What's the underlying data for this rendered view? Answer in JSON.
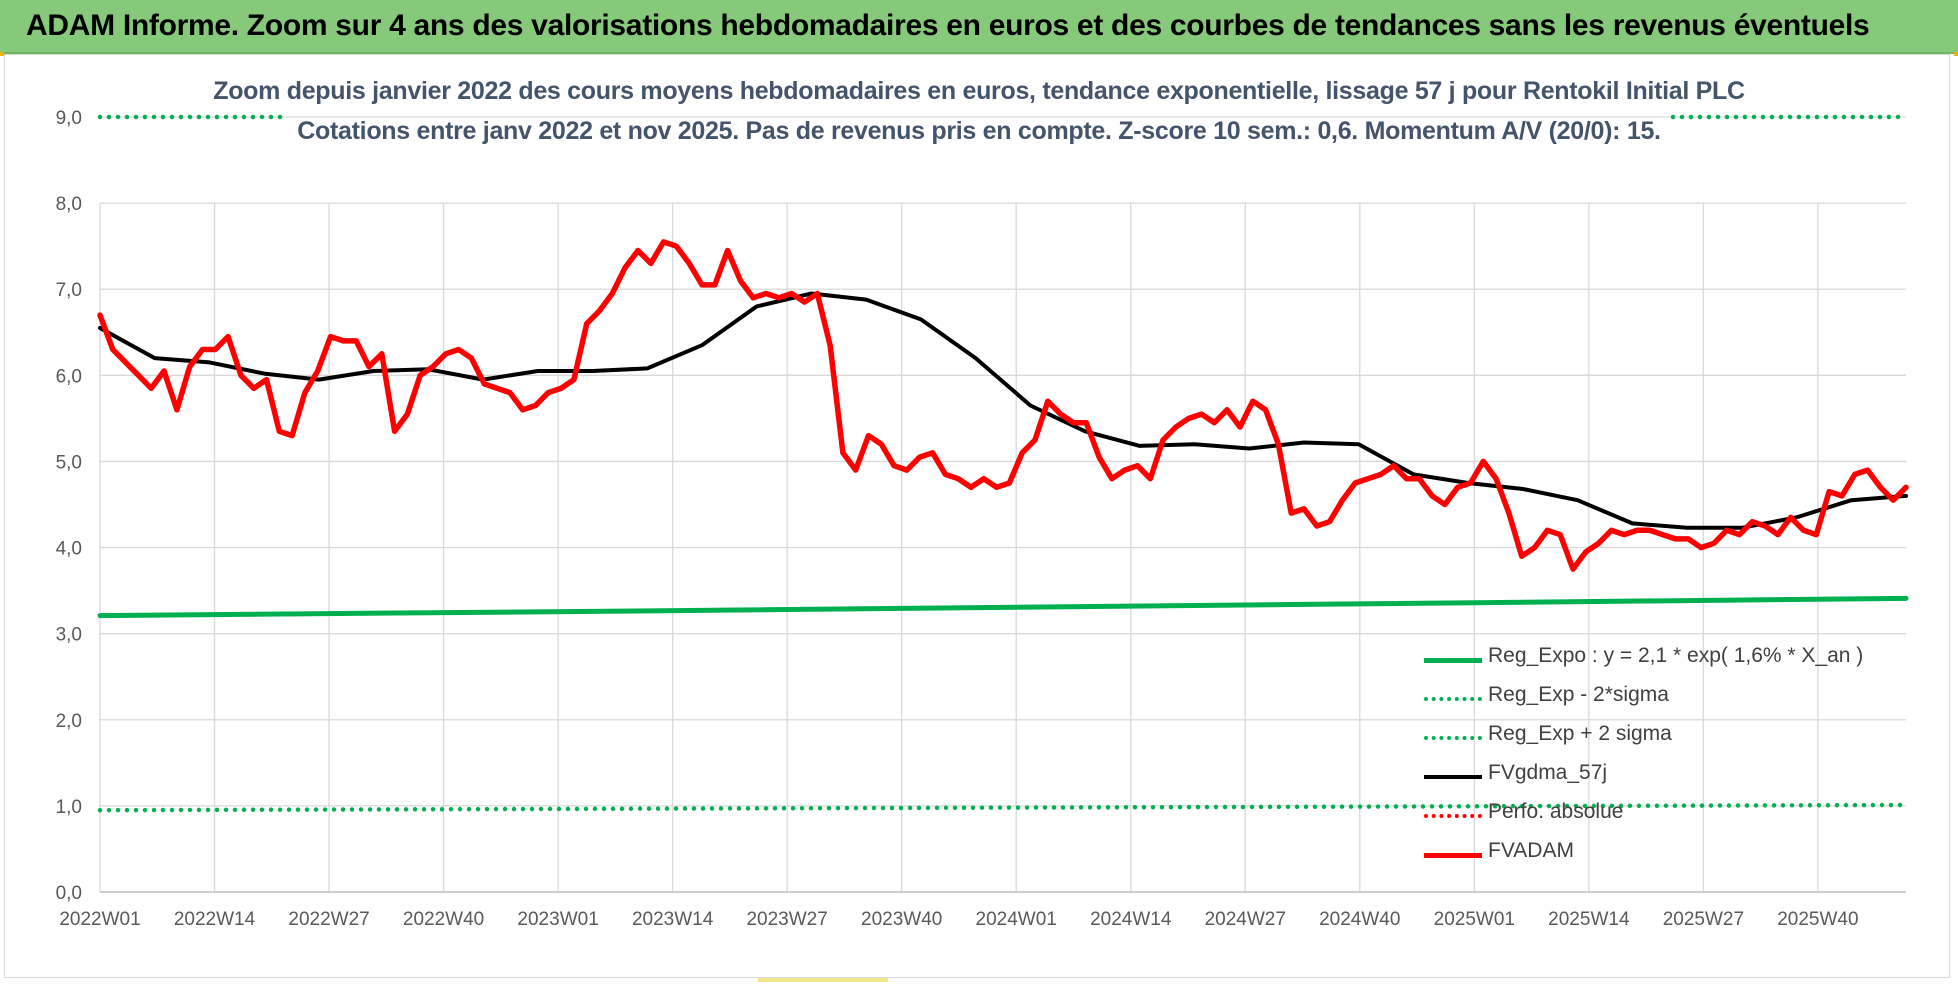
{
  "header": {
    "title": "ADAM Informe. Zoom sur 4 ans des valorisations hebdomadaires en euros et des courbes de tendances sans les revenus éventuels"
  },
  "chart_data": {
    "type": "line",
    "title": "Zoom depuis janvier 2022 des cours moyens hebdomadaires en euros, tendance exponentielle, lissage 57 j pour Rentokil Initial PLC",
    "subtitle": "Cotations entre janv 2022 et nov 2025. Pas de revenus pris en compte. Z-score 10 sem.: 0,6. Momentum A/V (20/0): 15.",
    "xlabel": "",
    "ylabel": "",
    "ylim": [
      0,
      9
    ],
    "yticks": [
      "0,0",
      "1,0",
      "2,0",
      "3,0",
      "4,0",
      "5,0",
      "6,0",
      "7,0",
      "8,0",
      "9,0"
    ],
    "x_tick_labels": [
      "2022W01",
      "2022W14",
      "2022W27",
      "2022W40",
      "2023W01",
      "2023W14",
      "2023W27",
      "2023W40",
      "2024W01",
      "2024W14",
      "2024W27",
      "2024W40",
      "2025W01",
      "2025W14",
      "2025W27",
      "2025W40"
    ],
    "x_tick_step_weeks": 13,
    "n_weeks": 206,
    "legend_position": "bottom-right",
    "series": [
      {
        "name": "Reg_Expo : y = 2,1 * exp( 1,6% *  X_an )",
        "style": "solid",
        "color": "#00b050",
        "values": [
          3.21,
          3.27,
          3.34,
          3.41
        ]
      },
      {
        "name": "Reg_Exp - 2*sigma",
        "style": "dotted",
        "color": "#00b050",
        "values": [
          0.95,
          0.97,
          0.99,
          1.01
        ]
      },
      {
        "name": "Reg_Exp + 2 sigma",
        "style": "dotted",
        "color": "#00b050",
        "values": [
          9.0,
          9.0,
          9.0,
          9.0
        ]
      },
      {
        "name": "FVgdma_57j",
        "style": "solid",
        "color": "#000000",
        "values": [
          6.55,
          6.2,
          6.15,
          6.02,
          5.95,
          6.05,
          6.07,
          5.95,
          6.05,
          6.05,
          6.08,
          6.35,
          6.8,
          6.95,
          6.88,
          6.65,
          6.2,
          5.65,
          5.35,
          5.18,
          5.2,
          5.15,
          5.22,
          5.2,
          4.85,
          4.75,
          4.68,
          4.55,
          4.28,
          4.23,
          4.23,
          4.35,
          4.55,
          4.6
        ]
      },
      {
        "name": "Perfo. absolue",
        "style": "dotted",
        "color": "#ff0000",
        "values": []
      },
      {
        "name": "FVADAM",
        "style": "solid",
        "color": "#ff0000",
        "values": [
          6.7,
          6.3,
          6.15,
          6.0,
          5.85,
          6.05,
          5.6,
          6.1,
          6.3,
          6.3,
          6.45,
          6.0,
          5.85,
          5.95,
          5.35,
          5.3,
          5.8,
          6.05,
          6.45,
          6.4,
          6.4,
          6.1,
          6.25,
          5.35,
          5.55,
          6.0,
          6.1,
          6.25,
          6.3,
          6.2,
          5.9,
          5.85,
          5.8,
          5.6,
          5.65,
          5.8,
          5.85,
          5.95,
          6.6,
          6.75,
          6.95,
          7.25,
          7.45,
          7.3,
          7.55,
          7.5,
          7.3,
          7.05,
          7.05,
          7.45,
          7.1,
          6.9,
          6.95,
          6.9,
          6.95,
          6.85,
          6.95,
          6.35,
          5.1,
          4.9,
          5.3,
          5.2,
          4.95,
          4.9,
          5.05,
          5.1,
          4.85,
          4.8,
          4.7,
          4.8,
          4.7,
          4.75,
          5.1,
          5.25,
          5.7,
          5.55,
          5.45,
          5.45,
          5.05,
          4.8,
          4.9,
          4.95,
          4.8,
          5.25,
          5.4,
          5.5,
          5.55,
          5.45,
          5.6,
          5.4,
          5.7,
          5.6,
          5.2,
          4.4,
          4.45,
          4.25,
          4.3,
          4.55,
          4.75,
          4.8,
          4.85,
          4.95,
          4.8,
          4.8,
          4.6,
          4.5,
          4.7,
          4.75,
          5.0,
          4.8,
          4.4,
          3.9,
          4.0,
          4.2,
          4.15,
          3.75,
          3.95,
          4.05,
          4.2,
          4.15,
          4.2,
          4.2,
          4.15,
          4.1,
          4.1,
          4.0,
          4.05,
          4.2,
          4.15,
          4.3,
          4.25,
          4.15,
          4.35,
          4.2,
          4.15,
          4.65,
          4.6,
          4.85,
          4.9,
          4.7,
          4.55,
          4.7
        ]
      }
    ]
  }
}
